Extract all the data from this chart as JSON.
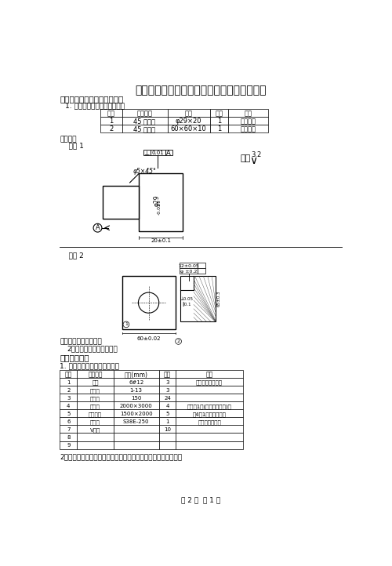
{
  "title": "农民工技能竞赛工具钓工技能考试准备通知单",
  "section1_title": "一、材料准备（见下备料图）",
  "section1_sub": "1. 以下所需材料由竞定所准备",
  "table1_headers": [
    "序号",
    "材料名称",
    "规格",
    "数量",
    "备注"
  ],
  "table1_rows": [
    [
      "1",
      "45 钓棒料",
      "φ29×20",
      "1",
      "尺寸自定"
    ],
    [
      "2",
      "45 钓钓板",
      "60×60×10",
      "1",
      "尺寸自定"
    ]
  ],
  "beiliao_label": "备料图：",
  "xuhao1_label": "    序号 1",
  "xuhao2_label": "    序号 2",
  "notes1": "备考：因方圆配件坏料",
  "notes2": "2、标竞定实际人数准备。",
  "section2_title": "二、设备准备",
  "section2_sub": "1. 以下所需设备由竞定所准备",
  "table2_headers": [
    "序号",
    "材料名称",
    "规格(mm)",
    "数量",
    "备注"
  ],
  "table2_rows": [
    [
      "1",
      "台钓",
      "6#12",
      "3",
      "（台钓附件齐全）"
    ],
    [
      "2",
      "钓头头",
      "1-13",
      "3",
      ""
    ],
    [
      "3",
      "台面钓",
      "150",
      "24",
      ""
    ],
    [
      "4",
      "钐工台",
      "2000×3000",
      "4",
      "（六工1张(中间竞定空间)）"
    ],
    [
      "5",
      "划线平台",
      "1500×2000",
      "5",
      "（4工1张）（三浦）"
    ],
    [
      "6",
      "砂轮机",
      "S38E-250",
      "1",
      "（白刺玉砂轮）"
    ],
    [
      "7",
      "V型架",
      "",
      "10",
      ""
    ],
    [
      "8",
      "",
      "",
      "",
      ""
    ],
    [
      "9",
      "",
      "",
      "",
      ""
    ]
  ],
  "notes3": "2、划线平台、锅床、砂轮机、钓台及附件配套齐全、布局合理。",
  "footer": "共 2 页  第 1 页",
  "bg_color": "#ffffff",
  "text_color": "#000000"
}
